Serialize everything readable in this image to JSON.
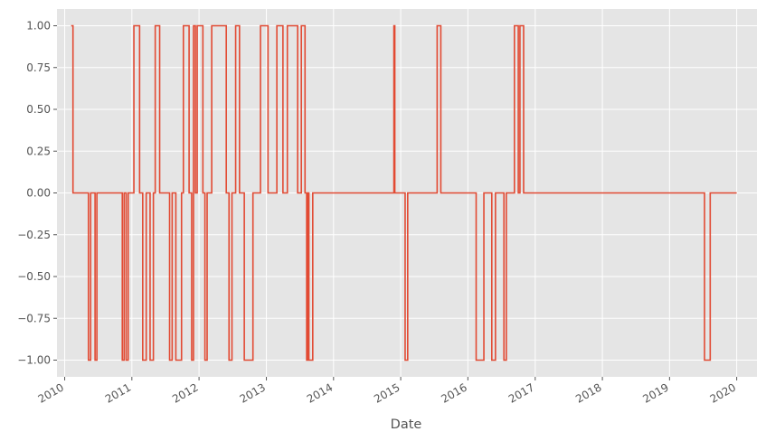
{
  "chart_data": {
    "type": "line",
    "title": "",
    "xlabel": "Date",
    "ylabel": "",
    "style": "ggplot",
    "grid": true,
    "legend": "none",
    "line_color": "#E24A33",
    "background_color": "#E5E5E5",
    "grid_color": "#FFFFFF",
    "xlim": [
      "2009-11-20",
      "2020-04-20"
    ],
    "ylim": [
      -1.1,
      1.1
    ],
    "yticks": [
      1.0,
      0.75,
      0.5,
      0.25,
      0.0,
      -0.25,
      -0.5,
      -0.75,
      -1.0
    ],
    "ytick_labels": [
      "1.00",
      "0.75",
      "0.50",
      "0.25",
      "0.00",
      "−0.25",
      "−0.50",
      "−0.75",
      "−1.00"
    ],
    "xticks": [
      "2010-01-01",
      "2011-01-01",
      "2012-01-01",
      "2013-01-01",
      "2014-01-01",
      "2015-01-01",
      "2016-01-01",
      "2017-01-01",
      "2018-01-01",
      "2019-01-01",
      "2020-01-01"
    ],
    "xtick_labels": [
      "2010",
      "2011",
      "2012",
      "2013",
      "2014",
      "2015",
      "2016",
      "2017",
      "2018",
      "2019",
      "2020"
    ],
    "series": [
      {
        "drawstyle": "steps-post",
        "points": [
          [
            "2010-02-05",
            1
          ],
          [
            "2010-02-15",
            0
          ],
          [
            "2010-05-10",
            -1
          ],
          [
            "2010-05-22",
            0
          ],
          [
            "2010-06-15",
            -1
          ],
          [
            "2010-06-25",
            0
          ],
          [
            "2010-11-10",
            -1
          ],
          [
            "2010-11-20",
            0
          ],
          [
            "2010-12-01",
            -1
          ],
          [
            "2010-12-12",
            0
          ],
          [
            "2011-01-12",
            1
          ],
          [
            "2011-02-12",
            0
          ],
          [
            "2011-03-01",
            -1
          ],
          [
            "2011-03-20",
            0
          ],
          [
            "2011-04-10",
            -1
          ],
          [
            "2011-04-28",
            0
          ],
          [
            "2011-05-08",
            1
          ],
          [
            "2011-06-01",
            0
          ],
          [
            "2011-07-25",
            -1
          ],
          [
            "2011-08-08",
            0
          ],
          [
            "2011-08-28",
            -1
          ],
          [
            "2011-09-28",
            0
          ],
          [
            "2011-10-08",
            1
          ],
          [
            "2011-11-08",
            0
          ],
          [
            "2011-11-22",
            -1
          ],
          [
            "2011-12-02",
            1
          ],
          [
            "2011-12-12",
            0
          ],
          [
            "2011-12-22",
            1
          ],
          [
            "2012-01-22",
            0
          ],
          [
            "2012-02-02",
            -1
          ],
          [
            "2012-02-14",
            0
          ],
          [
            "2012-03-10",
            1
          ],
          [
            "2012-05-28",
            0
          ],
          [
            "2012-06-12",
            -1
          ],
          [
            "2012-06-28",
            0
          ],
          [
            "2012-07-18",
            1
          ],
          [
            "2012-08-08",
            0
          ],
          [
            "2012-09-03",
            -1
          ],
          [
            "2012-10-20",
            0
          ],
          [
            "2012-11-30",
            1
          ],
          [
            "2013-01-10",
            0
          ],
          [
            "2013-02-27",
            1
          ],
          [
            "2013-04-01",
            0
          ],
          [
            "2013-04-25",
            1
          ],
          [
            "2013-06-20",
            0
          ],
          [
            "2013-07-10",
            1
          ],
          [
            "2013-07-30",
            0
          ],
          [
            "2013-08-08",
            -1
          ],
          [
            "2013-08-14",
            0
          ],
          [
            "2013-08-20",
            -1
          ],
          [
            "2013-09-10",
            0
          ],
          [
            "2014-11-25",
            1
          ],
          [
            "2014-11-30",
            0
          ],
          [
            "2015-01-25",
            -1
          ],
          [
            "2015-02-08",
            0
          ],
          [
            "2015-07-18",
            1
          ],
          [
            "2015-08-07",
            0
          ],
          [
            "2016-02-15",
            -1
          ],
          [
            "2016-03-28",
            0
          ],
          [
            "2016-05-10",
            -1
          ],
          [
            "2016-05-30",
            0
          ],
          [
            "2016-07-15",
            -1
          ],
          [
            "2016-07-28",
            0
          ],
          [
            "2016-09-10",
            1
          ],
          [
            "2016-10-01",
            0
          ],
          [
            "2016-10-10",
            1
          ],
          [
            "2016-10-30",
            0
          ],
          [
            "2019-07-10",
            -1
          ],
          [
            "2019-08-10",
            0
          ],
          [
            "2020-01-01",
            0
          ]
        ]
      }
    ]
  }
}
